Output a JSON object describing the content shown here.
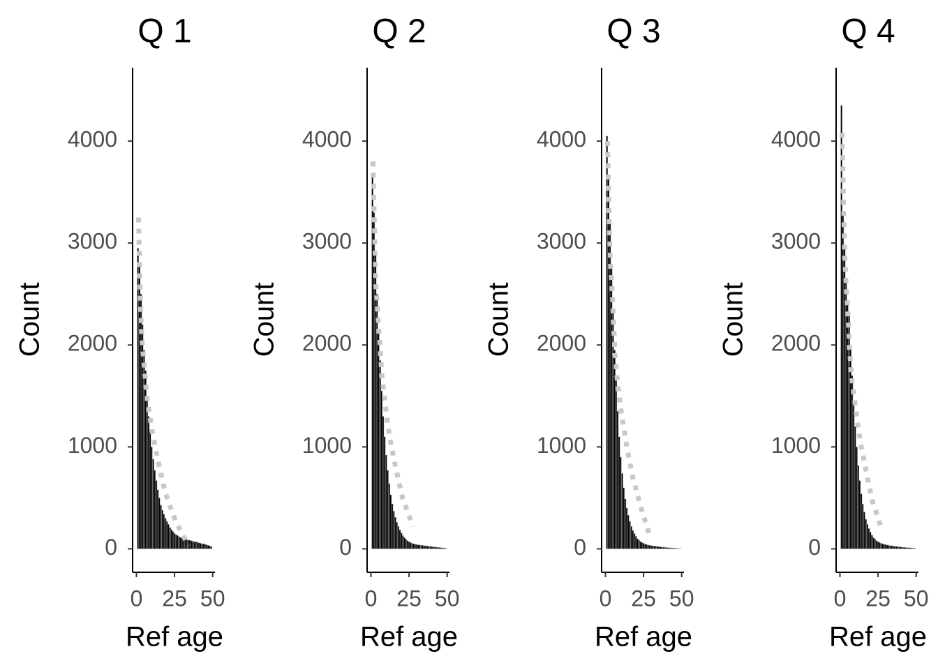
{
  "chart_data": [
    {
      "type": "histogram",
      "title": "Q 1",
      "x_label": "Ref age",
      "y_label": "Count",
      "color": "#000000",
      "bins": [
        0.5,
        1.5,
        2.5,
        3.5,
        4.5,
        5.5,
        6.5,
        7.5,
        8.5,
        9.5,
        10.5,
        11.5,
        12.5,
        13.5,
        14.5,
        15.5,
        16.5,
        17.5,
        18.5,
        19.5,
        20.5,
        21.5,
        22.5,
        23.5,
        24.5,
        25.5,
        26.5,
        27.5,
        28.5,
        29.5,
        30.5,
        31.5,
        32.5,
        33.5,
        34.5,
        35.5,
        36.5,
        37.5,
        38.5,
        39.5,
        40.5,
        41.5,
        42.5,
        43.5,
        44.5,
        45.5,
        46.5,
        47.5,
        48.5,
        49.5
      ],
      "values": [
        2950,
        2800,
        2500,
        2200,
        1950,
        1750,
        1500,
        1300,
        1150,
        1000,
        880,
        770,
        670,
        580,
        500,
        430,
        380,
        340,
        300,
        270,
        240,
        210,
        190,
        170,
        150,
        140,
        130,
        120,
        110,
        110,
        100,
        95,
        90,
        85,
        85,
        80,
        75,
        70,
        70,
        65,
        60,
        55,
        50,
        50,
        45,
        40,
        35,
        30,
        25
      ],
      "fit": {
        "color": "#c8c8c8",
        "x": [
          1.4,
          1.8,
          2.3,
          2.7,
          3.6,
          5.4,
          7.2,
          10.4,
          14.4,
          18.9,
          25.7,
          34.2
        ],
        "values": [
          3250,
          2950,
          2650,
          2350,
          2050,
          1750,
          1450,
          1150,
          850,
          550,
          270,
          30
        ]
      },
      "xlim": [
        -2.5,
        51.5
      ],
      "ylim": [
        -230,
        4720
      ],
      "xticks": [
        0,
        25,
        50
      ],
      "yticks": [
        0,
        1000,
        2000,
        3000,
        4000
      ]
    },
    {
      "type": "histogram",
      "title": "Q 2",
      "x_label": "Ref age",
      "y_label": "Count",
      "color": "#000000",
      "bins": [
        0.5,
        1.5,
        2.5,
        3.5,
        4.5,
        5.5,
        6.5,
        7.5,
        8.5,
        9.5,
        10.5,
        11.5,
        12.5,
        13.5,
        14.5,
        15.5,
        16.5,
        17.5,
        18.5,
        19.5,
        20.5,
        21.5,
        22.5,
        23.5,
        24.5,
        25.5,
        26.5,
        27.5,
        28.5,
        29.5,
        30.5,
        31.5,
        32.5,
        33.5,
        34.5,
        35.5,
        36.5,
        37.5,
        38.5,
        39.5,
        40.5,
        41.5,
        42.5,
        43.5,
        44.5,
        45.5,
        46.5,
        47.5,
        48.5,
        49.5
      ],
      "values": [
        3650,
        3300,
        2900,
        2500,
        2150,
        1850,
        1550,
        1300,
        1100,
        920,
        770,
        640,
        530,
        440,
        370,
        310,
        260,
        220,
        185,
        155,
        130,
        110,
        95,
        80,
        70,
        62,
        55,
        50,
        45,
        42,
        40,
        38,
        36,
        34,
        32,
        30,
        28,
        26,
        24,
        22,
        20,
        18,
        16,
        15,
        14,
        12,
        10,
        9,
        8
      ],
      "fit": {
        "color": "#c8c8c8",
        "x": [
          1.35,
          1.8,
          2.25,
          2.7,
          3.2,
          4.5,
          5.9,
          7.2,
          9.5,
          12.2,
          16.2,
          20.7,
          27.5
        ],
        "values": [
          3800,
          3500,
          3200,
          2900,
          2600,
          2300,
          2000,
          1700,
          1400,
          1100,
          800,
          500,
          220
        ]
      },
      "xlim": [
        -2.5,
        51.5
      ],
      "ylim": [
        -230,
        4720
      ],
      "xticks": [
        0,
        25,
        50
      ],
      "yticks": [
        0,
        1000,
        2000,
        3000,
        4000
      ]
    },
    {
      "type": "histogram",
      "title": "Q 3",
      "x_label": "Ref age",
      "y_label": "Count",
      "color": "#000000",
      "bins": [
        0.5,
        1.5,
        2.5,
        3.5,
        4.5,
        5.5,
        6.5,
        7.5,
        8.5,
        9.5,
        10.5,
        11.5,
        12.5,
        13.5,
        14.5,
        15.5,
        16.5,
        17.5,
        18.5,
        19.5,
        20.5,
        21.5,
        22.5,
        23.5,
        24.5,
        25.5,
        26.5,
        27.5,
        28.5,
        29.5,
        30.5,
        31.5,
        32.5,
        33.5,
        34.5,
        35.5,
        36.5,
        37.5,
        38.5,
        39.5,
        40.5,
        41.5,
        42.5,
        43.5,
        44.5,
        45.5,
        46.5,
        47.5,
        48.5,
        49.5
      ],
      "values": [
        4050,
        3650,
        3200,
        2750,
        2350,
        1950,
        1650,
        1350,
        1100,
        900,
        740,
        600,
        490,
        400,
        330,
        270,
        220,
        180,
        150,
        125,
        100,
        85,
        72,
        62,
        55,
        48,
        42,
        38,
        35,
        32,
        30,
        28,
        26,
        24,
        22,
        20,
        18,
        16,
        15,
        14,
        12,
        11,
        10,
        9,
        8,
        7,
        6,
        5,
        4
      ],
      "fit": {
        "color": "#c8c8c8",
        "x": [
          1.35,
          1.8,
          2.25,
          2.7,
          3.2,
          4.5,
          5.4,
          6.3,
          8.1,
          10.8,
          14,
          18,
          23.4,
          29.3
        ],
        "values": [
          4000,
          3700,
          3400,
          3100,
          2800,
          2500,
          2200,
          1900,
          1600,
          1300,
          1000,
          700,
          400,
          120
        ]
      },
      "xlim": [
        -2.5,
        51.5
      ],
      "ylim": [
        -230,
        4720
      ],
      "xticks": [
        0,
        25,
        50
      ],
      "yticks": [
        0,
        1000,
        2000,
        3000,
        4000
      ]
    },
    {
      "type": "histogram",
      "title": "Q 4",
      "x_label": "Ref age",
      "y_label": "Count",
      "color": "#000000",
      "bins": [
        0.5,
        1.5,
        2.5,
        3.5,
        4.5,
        5.5,
        6.5,
        7.5,
        8.5,
        9.5,
        10.5,
        11.5,
        12.5,
        13.5,
        14.5,
        15.5,
        16.5,
        17.5,
        18.5,
        19.5,
        20.5,
        21.5,
        22.5,
        23.5,
        24.5,
        25.5,
        26.5,
        27.5,
        28.5,
        29.5,
        30.5,
        31.5,
        32.5,
        33.5,
        34.5,
        35.5,
        36.5,
        37.5,
        38.5,
        39.5,
        40.5,
        41.5,
        42.5,
        43.5,
        44.5,
        45.5,
        46.5,
        47.5,
        48.5,
        49.5
      ],
      "values": [
        4350,
        3300,
        2950,
        2650,
        2400,
        2300,
        2000,
        1700,
        1450,
        1200,
        1000,
        820,
        670,
        540,
        440,
        360,
        290,
        240,
        200,
        165,
        135,
        110,
        95,
        80,
        70,
        62,
        55,
        50,
        45,
        42,
        38,
        35,
        32,
        30,
        28,
        26,
        24,
        22,
        20,
        18,
        16,
        15,
        14,
        12,
        11,
        10,
        9,
        8,
        7
      ],
      "fit": {
        "color": "#c8c8c8",
        "x": [
          1.35,
          1.8,
          2.25,
          2.7,
          3.2,
          4.1,
          5.4,
          6.3,
          7.7,
          10.4,
          13.1,
          17.1,
          21.2,
          27.5
        ],
        "values": [
          4080,
          3780,
          3480,
          3170,
          2870,
          2570,
          2270,
          1970,
          1670,
          1370,
          1070,
          770,
          470,
          190
        ]
      },
      "xlim": [
        -2.5,
        51.5
      ],
      "ylim": [
        -230,
        4720
      ],
      "xticks": [
        0,
        25,
        50
      ],
      "yticks": [
        0,
        1000,
        2000,
        3000,
        4000
      ]
    }
  ]
}
